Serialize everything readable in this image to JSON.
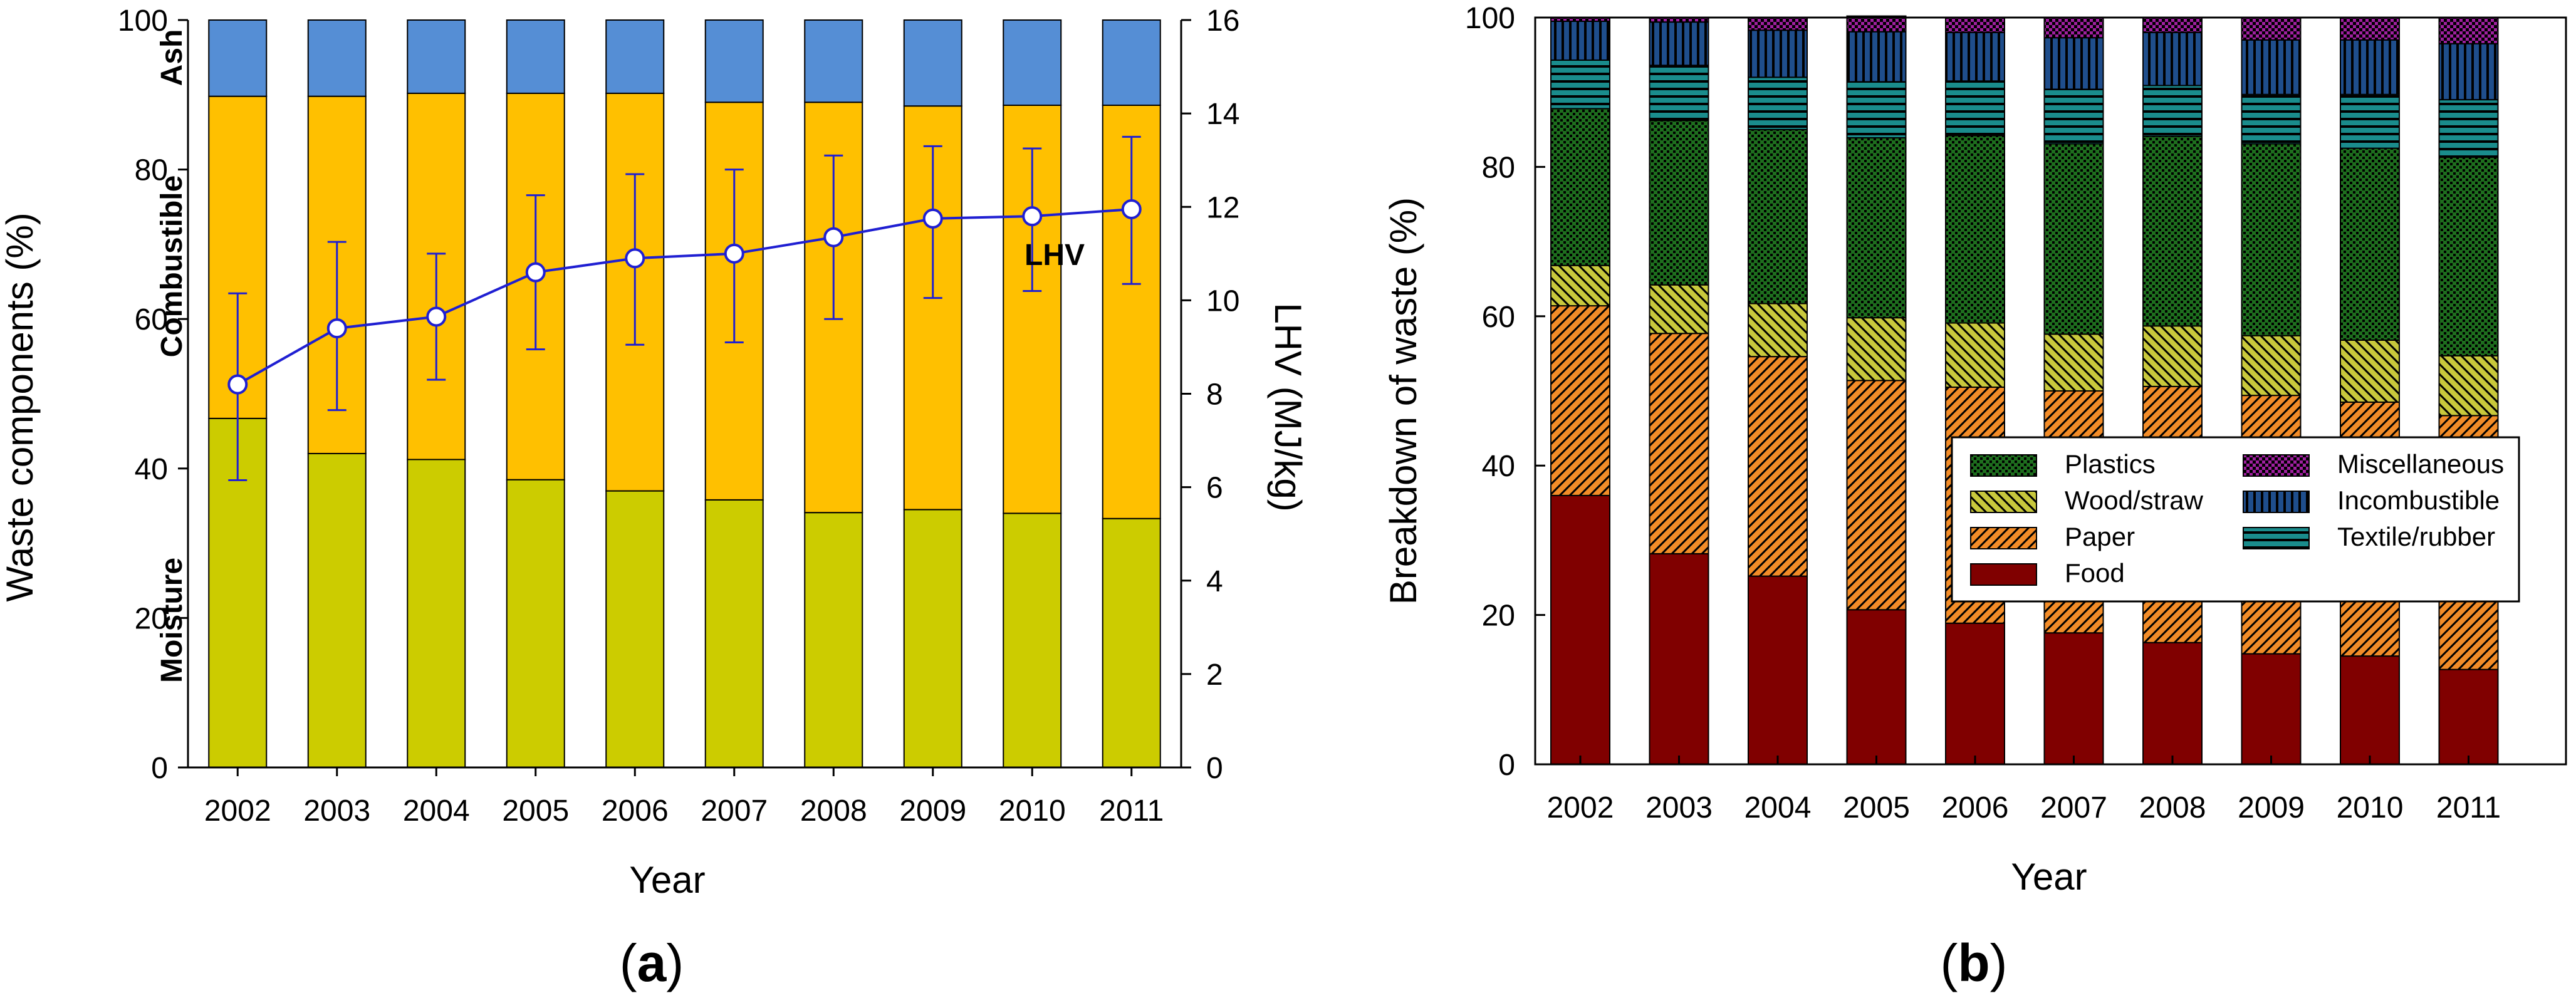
{
  "chart_data": [
    {
      "type": "bar",
      "subtype": "stacked-bar-with-line",
      "panel_label": {
        "open": "(",
        "letter": "a",
        "close": ")"
      },
      "categories": [
        "2002",
        "2003",
        "2004",
        "2005",
        "2006",
        "2007",
        "2008",
        "2009",
        "2010",
        "2011"
      ],
      "xlabel": "Year",
      "ylabel": "Waste components (%)",
      "ylim": [
        0,
        100
      ],
      "yticks": [
        "0",
        "20",
        "40",
        "60",
        "80",
        "100"
      ],
      "y2label": "LHV (MJ/kg)",
      "y2lim": [
        0,
        16
      ],
      "y2ticks": [
        "0",
        "2",
        "4",
        "6",
        "8",
        "10",
        "12",
        "14",
        "16"
      ],
      "series": [
        {
          "name": "Moisture",
          "color": "#CCCC00",
          "values": [
            46.7,
            42.0,
            41.2,
            38.5,
            37.0,
            35.8,
            34.1,
            34.5,
            34.0,
            33.3
          ]
        },
        {
          "name": "Combustible",
          "color": "#FFC000",
          "values": [
            43.1,
            47.8,
            49.0,
            51.7,
            53.2,
            53.2,
            54.9,
            54.0,
            54.6,
            55.3
          ]
        },
        {
          "name": "Ash",
          "color": "#558ED5",
          "values": [
            10.2,
            10.2,
            9.8,
            9.8,
            9.8,
            11.0,
            11.0,
            11.5,
            11.4,
            11.4
          ]
        }
      ],
      "in_chart_labels": [
        "Moisture",
        "Combustible",
        "Ash"
      ],
      "line_series": {
        "name": "LHV",
        "axis": "right",
        "color": "#1F1FD2",
        "values": [
          8.2,
          9.4,
          9.65,
          10.6,
          10.9,
          11.0,
          11.35,
          11.75,
          11.8,
          11.95
        ],
        "err_low": [
          6.15,
          7.65,
          8.3,
          8.95,
          9.05,
          9.1,
          9.6,
          10.05,
          10.2,
          10.35
        ],
        "err_high": [
          10.15,
          11.25,
          11.0,
          12.25,
          12.7,
          12.8,
          13.1,
          13.3,
          13.25,
          13.5
        ],
        "label": "LHV"
      }
    },
    {
      "type": "bar",
      "subtype": "stacked-bar",
      "panel_label": {
        "open": "(",
        "letter": "b",
        "close": ")"
      },
      "categories": [
        "2002",
        "2003",
        "2004",
        "2005",
        "2006",
        "2007",
        "2008",
        "2009",
        "2010",
        "2011"
      ],
      "xlabel": "Year",
      "ylabel": "Breakdown of waste (%)",
      "ylim": [
        0,
        100
      ],
      "yticks": [
        "0",
        "20",
        "40",
        "60",
        "80",
        "100"
      ],
      "legend_position": "center-right",
      "series": [
        {
          "name": "Food",
          "color": "#800000",
          "pattern": "solid",
          "values": [
            36.0,
            28.2,
            25.2,
            20.7,
            18.9,
            17.6,
            16.3,
            14.8,
            14.5,
            12.7
          ]
        },
        {
          "name": "Paper",
          "color": "#F28C28",
          "pattern": "diagonal",
          "values": [
            25.4,
            29.5,
            29.4,
            30.7,
            31.6,
            32.4,
            34.3,
            34.6,
            34.0,
            34.0
          ]
        },
        {
          "name": "Wood/straw",
          "color": "#C8C83C",
          "pattern": "hatch",
          "values": [
            5.4,
            6.5,
            7.1,
            8.4,
            8.6,
            7.6,
            8.1,
            8.0,
            8.3,
            8.0
          ]
        },
        {
          "name": "Plastics",
          "color": "#1E6E1E",
          "pattern": "dots",
          "values": [
            21.0,
            22.0,
            23.3,
            24.1,
            25.1,
            25.5,
            25.4,
            25.7,
            25.7,
            26.6
          ]
        },
        {
          "name": "Textile/rubber",
          "color": "#1A8C8C",
          "pattern": "horizontal",
          "values": [
            6.5,
            7.4,
            7.0,
            7.5,
            7.3,
            7.3,
            6.8,
            6.6,
            7.2,
            7.7
          ]
        },
        {
          "name": "Incombustible",
          "color": "#1F4E8C",
          "pattern": "vertical",
          "values": [
            5.2,
            5.8,
            6.3,
            6.7,
            6.5,
            6.9,
            7.1,
            7.3,
            7.3,
            7.5
          ]
        },
        {
          "name": "Miscellaneous",
          "color": "#A020A0",
          "pattern": "checker",
          "values": [
            0.5,
            0.6,
            1.7,
            2.1,
            2.0,
            2.7,
            2.0,
            3.0,
            3.0,
            3.5
          ]
        }
      ],
      "legend": [
        [
          "Plastics",
          "Miscellaneous"
        ],
        [
          "Wood/straw",
          "Incombustible"
        ],
        [
          "Paper",
          "Textile/rubber"
        ],
        [
          "Food",
          ""
        ]
      ]
    }
  ]
}
